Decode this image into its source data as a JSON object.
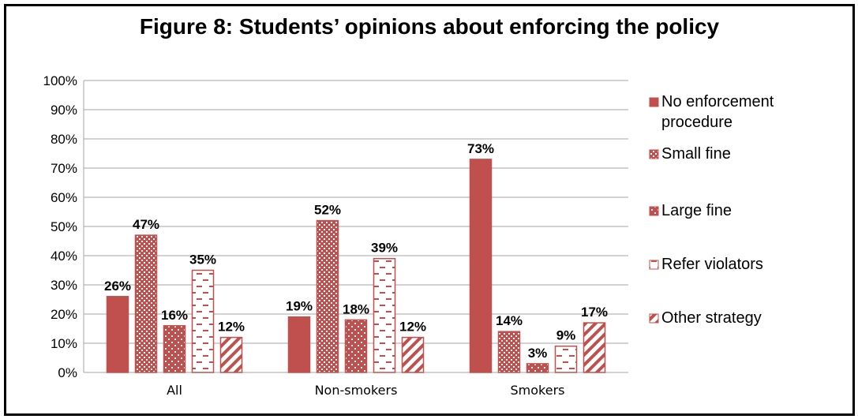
{
  "chart_data": {
    "type": "bar",
    "title": "Figure 8: Students’ opinions about enforcing the policy",
    "categories": [
      "All",
      "Non-smokers",
      "Smokers"
    ],
    "ylim": [
      0,
      100
    ],
    "yticks": [
      "0%",
      "10%",
      "20%",
      "30%",
      "40%",
      "50%",
      "60%",
      "70%",
      "80%",
      "90%",
      "100%"
    ],
    "grid": true,
    "legend_position": "right",
    "series": [
      {
        "name": "No enforcement procedure",
        "legend_lines": [
          "No enforcement",
          "procedure"
        ],
        "values": [
          26,
          19,
          73
        ],
        "labels": [
          "26%",
          "19%",
          "73%"
        ],
        "color": "#c0504d",
        "pattern": "solid"
      },
      {
        "name": "Small fine",
        "legend_lines": [
          "Small fine"
        ],
        "values": [
          47,
          52,
          14
        ],
        "labels": [
          "47%",
          "52%",
          "14%"
        ],
        "color": "#c0504d",
        "pattern": "checker"
      },
      {
        "name": "Large fine",
        "legend_lines": [
          "Large fine"
        ],
        "values": [
          16,
          18,
          3
        ],
        "labels": [
          "16%",
          "18%",
          "3%"
        ],
        "color": "#c0504d",
        "pattern": "dots"
      },
      {
        "name": "Refer violators",
        "legend_lines": [
          "Refer violators"
        ],
        "values": [
          35,
          39,
          9
        ],
        "labels": [
          "35%",
          "39%",
          "9%"
        ],
        "color": "#c0504d",
        "pattern": "dashes"
      },
      {
        "name": "Other strategy",
        "legend_lines": [
          "Other strategy"
        ],
        "values": [
          12,
          12,
          17
        ],
        "labels": [
          "12%",
          "12%",
          "17%"
        ],
        "color": "#c0504d",
        "pattern": "diagonal"
      }
    ]
  }
}
